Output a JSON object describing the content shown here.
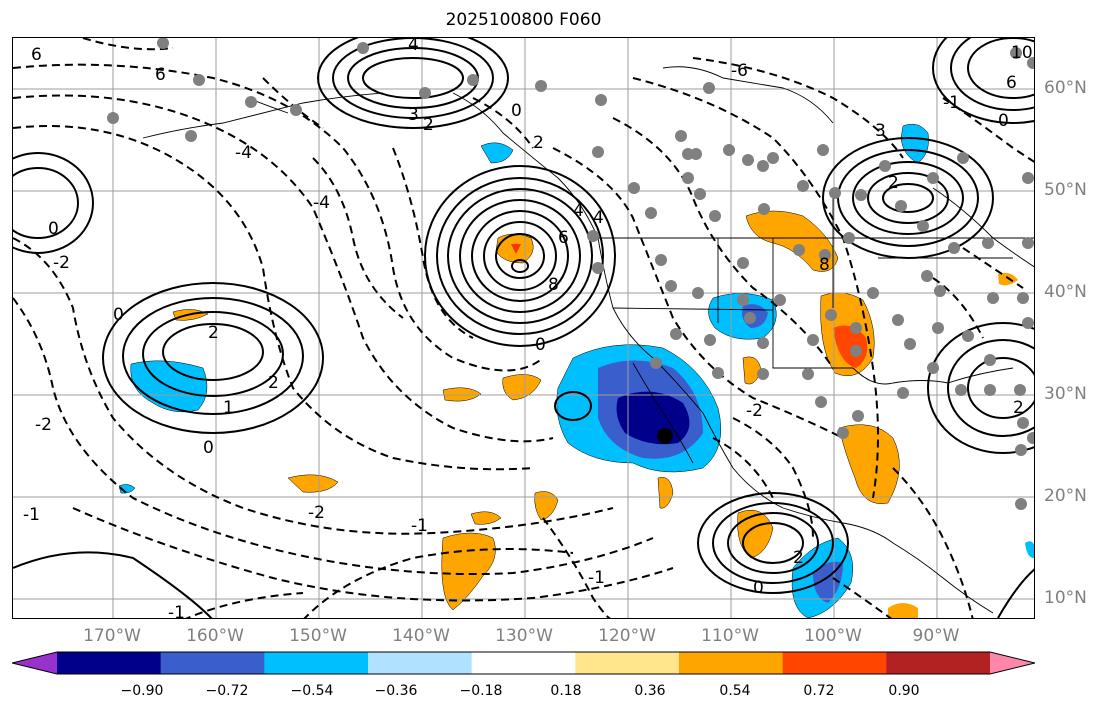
{
  "title": "2025100800 F060",
  "axes": {
    "lon_labels": [
      "170°W",
      "160°W",
      "150°W",
      "140°W",
      "130°W",
      "120°W",
      "110°W",
      "100°W",
      "90°W"
    ],
    "lat_labels": [
      "60°N",
      "50°N",
      "40°N",
      "30°N",
      "20°N",
      "10°N"
    ]
  },
  "colorbar": {
    "ticks": [
      "−0.90",
      "−0.72",
      "−0.54",
      "−0.36",
      "−0.18",
      "0.18",
      "0.36",
      "0.54",
      "0.72",
      "0.90"
    ],
    "colors": [
      "#9932cc",
      "#00008b",
      "#3a5fcd",
      "#00bfff",
      "#b0e2ff",
      "#ffffff",
      "#ffe68c",
      "#ffa500",
      "#ff4500",
      "#b22222",
      "#ff88aa"
    ]
  },
  "contour_labels": [
    "6",
    "4",
    "6",
    "3",
    "2",
    "0",
    "2",
    "4",
    "-6",
    "-4",
    "0",
    "-2",
    "-4",
    "4",
    "6",
    "8",
    "0",
    "2",
    "1",
    "0",
    "-1",
    "-2",
    "0",
    "-1",
    "2",
    "-2",
    "-1",
    "2",
    "3",
    "8",
    "6",
    "10",
    "2",
    "-1",
    "0",
    "2",
    "-2",
    "0",
    "-1"
  ],
  "marker": {
    "label": "low center"
  }
}
